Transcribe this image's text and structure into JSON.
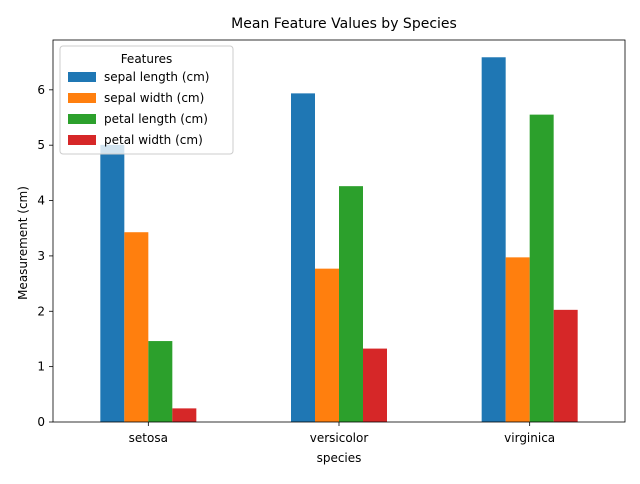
{
  "chart_data": {
    "type": "bar",
    "title": "Mean Feature Values by Species",
    "xlabel": "species",
    "ylabel": "Measurement (cm)",
    "categories": [
      "setosa",
      "versicolor",
      "virginica"
    ],
    "series": [
      {
        "name": "sepal length (cm)",
        "color": "#1f77b4",
        "values": [
          5.006,
          5.936,
          6.588
        ]
      },
      {
        "name": "sepal width (cm)",
        "color": "#ff7f0e",
        "values": [
          3.428,
          2.77,
          2.974
        ]
      },
      {
        "name": "petal length (cm)",
        "color": "#2ca02c",
        "values": [
          1.462,
          4.26,
          5.552
        ]
      },
      {
        "name": "petal width (cm)",
        "color": "#d62728",
        "values": [
          0.246,
          1.326,
          2.026
        ]
      }
    ],
    "ylim": [
      0,
      6.9
    ],
    "yticks": [
      0,
      1,
      2,
      3,
      4,
      5,
      6
    ],
    "grid": false,
    "legend": {
      "title": "Features",
      "placement": "upper left"
    }
  }
}
